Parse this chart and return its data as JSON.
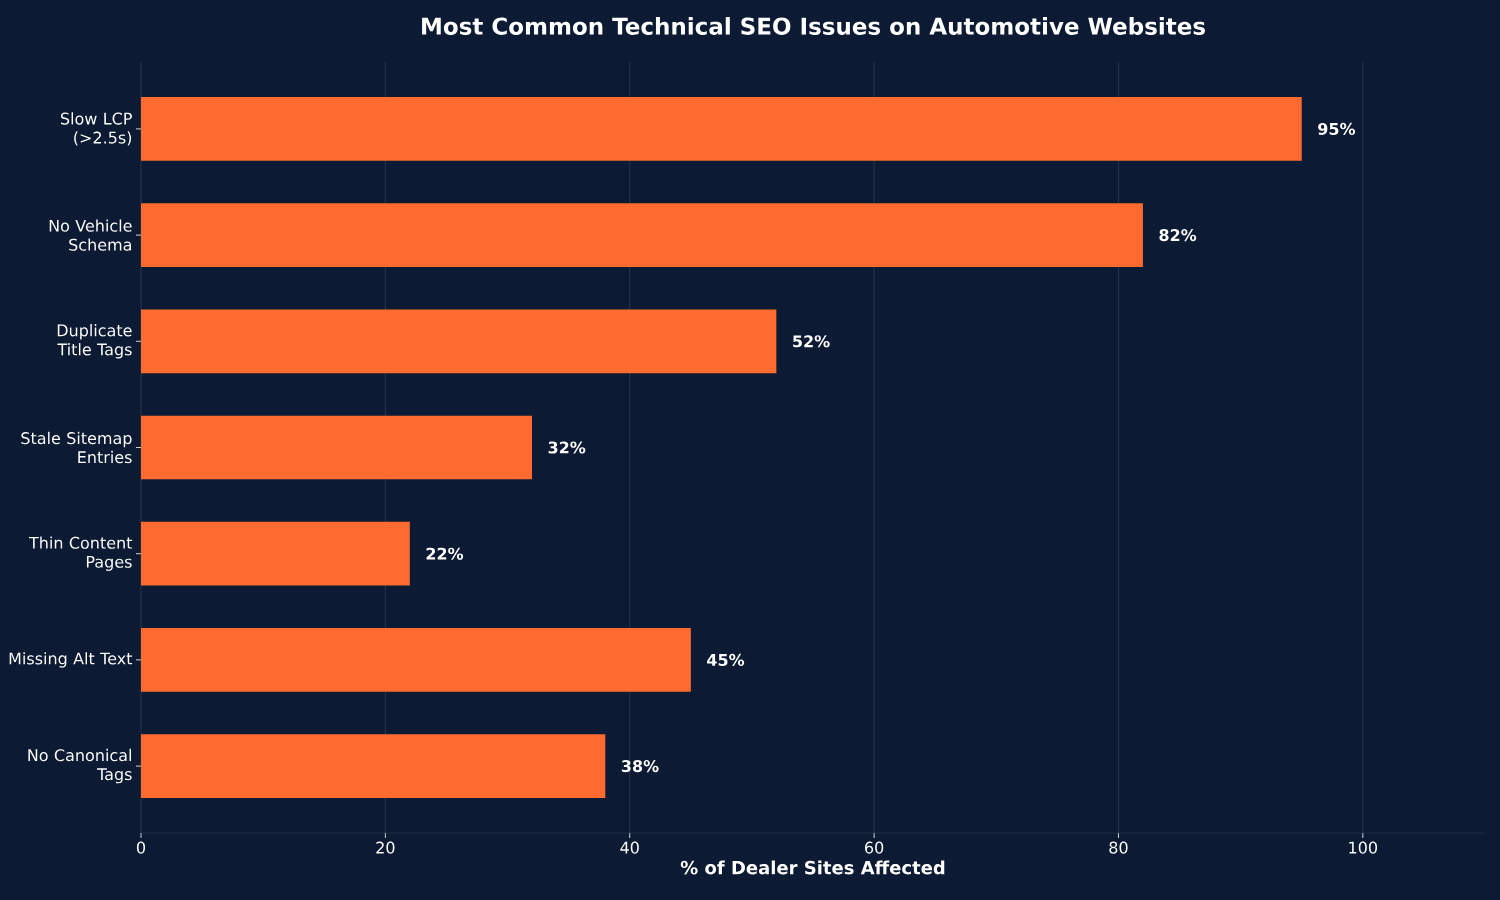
{
  "chart_data": {
    "type": "bar",
    "orientation": "horizontal",
    "title": "Most Common Technical SEO Issues on Automotive Websites",
    "xlabel": "% of Dealer Sites Affected",
    "categories": [
      "Slow LCP (>2.5s)",
      "No Vehicle Schema",
      "Duplicate Title Tags",
      "Stale Sitemap Entries",
      "Thin Content Pages",
      "Missing Alt Text",
      "No Canonical Tags"
    ],
    "values": [
      95,
      82,
      52,
      32,
      22,
      45,
      38
    ],
    "value_labels": [
      "95%",
      "82%",
      "52%",
      "32%",
      "22%",
      "45%",
      "38%"
    ],
    "color": "#ff6b2f",
    "xlim": [
      0,
      110
    ],
    "xticks": [
      0,
      20,
      40,
      60,
      80,
      100
    ],
    "grid": "x"
  }
}
